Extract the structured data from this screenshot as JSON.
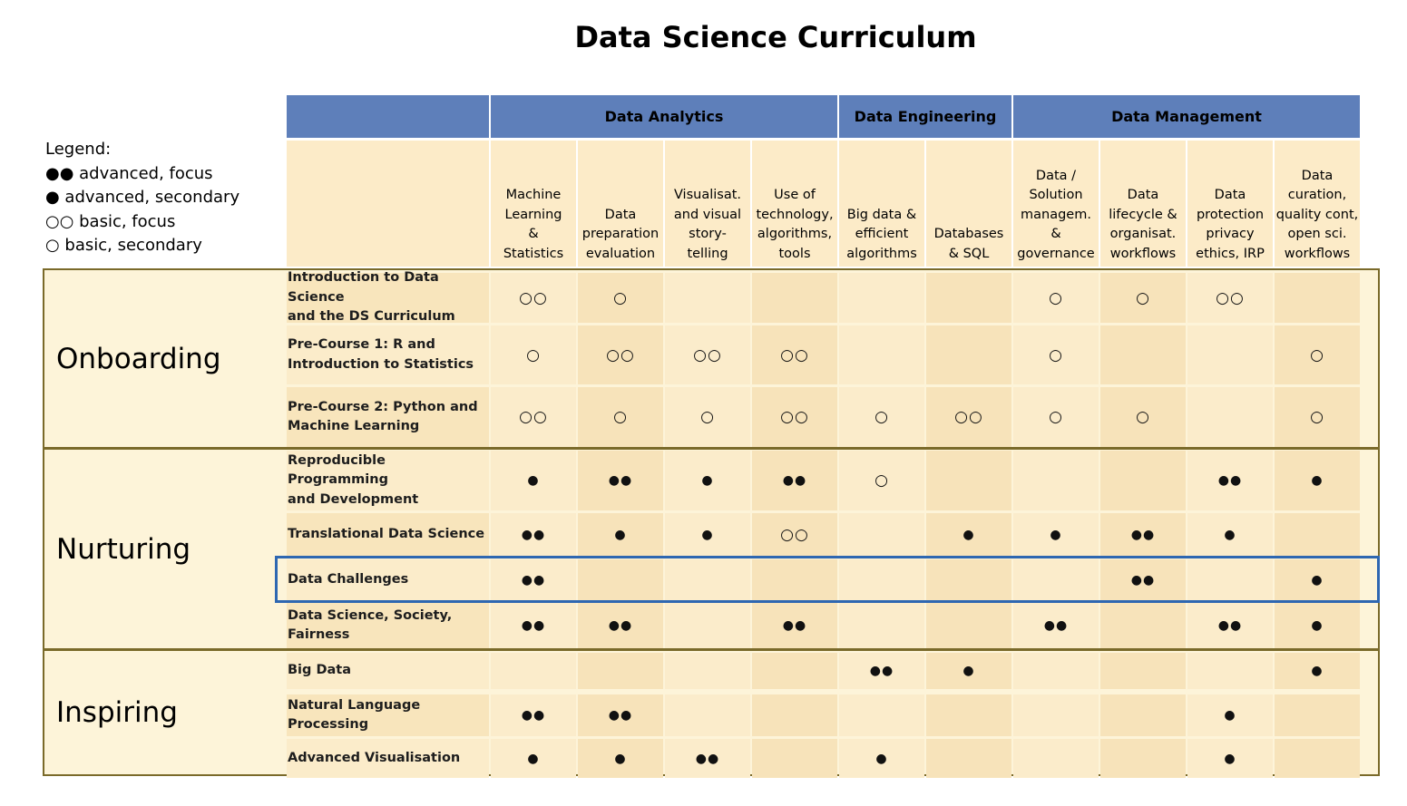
{
  "title": "Data Science Curriculum",
  "legend": {
    "heading": "Legend:",
    "items": [
      "●● advanced, focus",
      "● advanced, secondary",
      "○○ basic, focus",
      "○ basic, secondary"
    ]
  },
  "groups": [
    {
      "label": "Data Analytics"
    },
    {
      "label": "Data Engineering"
    },
    {
      "label": "Data Management"
    }
  ],
  "columns": [
    {
      "label": "Machine\nLearning\n&\nStatistics"
    },
    {
      "label": "Data\npreparation\nevaluation"
    },
    {
      "label": "Visualisat.\nand visual\nstory-\ntelling"
    },
    {
      "label": "Use of\ntechnology,\nalgorithms,\ntools"
    },
    {
      "label": "Big data &\nefficient\nalgorithms"
    },
    {
      "label": "Databases\n& SQL"
    },
    {
      "label": "Data /\nSolution\nmanagem.\n&\ngovernance"
    },
    {
      "label": "Data\nlifecycle &\norganisat.\nworkflows"
    },
    {
      "label": "Data\nprotection\nprivacy\nethics, IRP"
    },
    {
      "label": "Data\ncuration,\nquality cont,\nopen sci.\nworkflows"
    }
  ],
  "phases": [
    {
      "label": "Onboarding"
    },
    {
      "label": "Nurturing"
    },
    {
      "label": "Inspiring"
    }
  ],
  "rows": [
    {
      "course": "Introduction to Data Science\nand the DS Curriculum",
      "marks": [
        "○○",
        "○",
        "",
        "",
        "",
        "",
        "○",
        "○",
        "○○",
        ""
      ]
    },
    {
      "course": "Pre-Course 1: R and\nIntroduction to Statistics",
      "marks": [
        "○",
        "○○",
        "○○",
        "○○",
        "",
        "",
        "○",
        "",
        "",
        "○"
      ]
    },
    {
      "course": "Pre-Course 2: Python and\nMachine Learning",
      "marks": [
        "○○",
        "○",
        "○",
        "○○",
        "○",
        "○○",
        "○",
        "○",
        "",
        "○"
      ]
    },
    {
      "course": "Reproducible Programming\nand Development",
      "marks": [
        "●",
        "●●",
        "●",
        "●●",
        "○",
        "",
        "",
        "",
        "●●",
        "●"
      ]
    },
    {
      "course": "Translational Data Science",
      "marks": [
        "●●",
        "●",
        "●",
        "○○",
        "",
        "●",
        "●",
        "●●",
        "●",
        ""
      ]
    },
    {
      "course": "Data Challenges",
      "marks": [
        "●●",
        "",
        "",
        "",
        "",
        "",
        "",
        "●●",
        "",
        "●"
      ]
    },
    {
      "course": "Data Science, Society,\nFairness",
      "marks": [
        "●●",
        "●●",
        "",
        "●●",
        "",
        "",
        "●●",
        "",
        "●●",
        "●"
      ]
    },
    {
      "course": "Big Data",
      "marks": [
        "",
        "",
        "",
        "",
        "●●",
        "●",
        "",
        "",
        "",
        "●"
      ]
    },
    {
      "course": "Natural Language Processing",
      "marks": [
        "●●",
        "●●",
        "",
        "",
        "",
        "",
        "",
        "",
        "●",
        ""
      ]
    },
    {
      "course": "Advanced Visualisation",
      "marks": [
        "●",
        "●",
        "●●",
        "",
        "●",
        "",
        "",
        "",
        "●",
        ""
      ]
    }
  ]
}
